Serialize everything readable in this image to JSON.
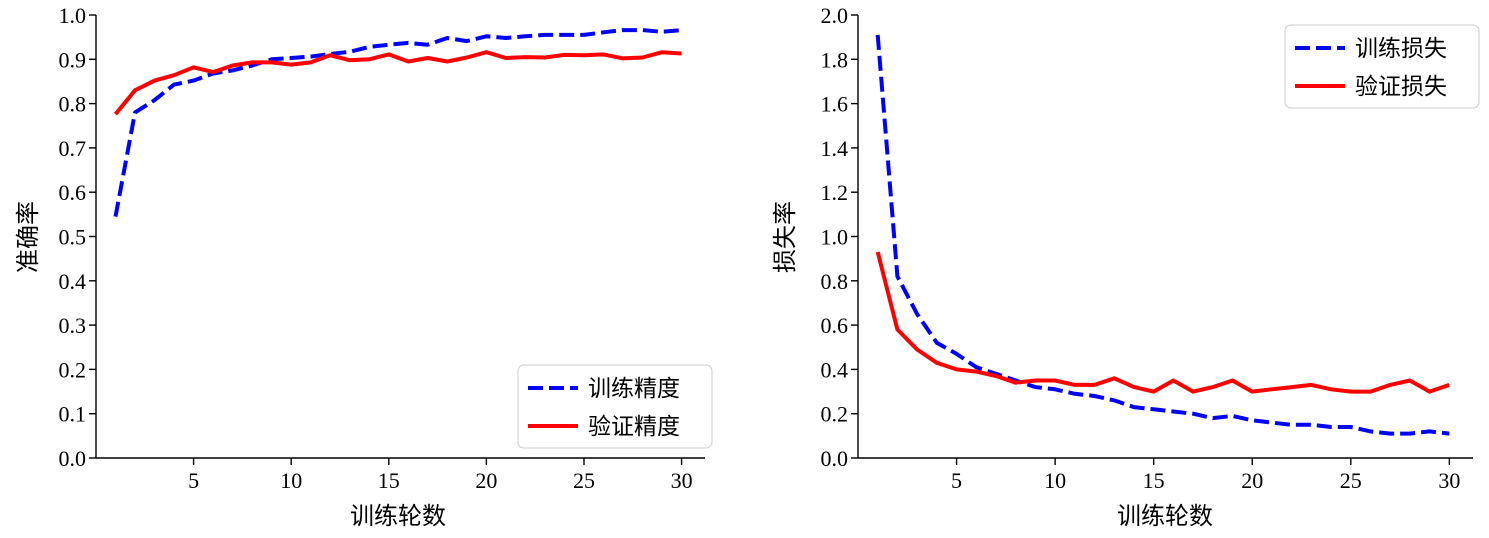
{
  "chart_data": [
    {
      "type": "line",
      "xlabel": "训练轮数",
      "ylabel": "准确率",
      "xlim": [
        0,
        31.2
      ],
      "ylim": [
        0,
        1.0
      ],
      "xticks": [
        5,
        10,
        15,
        20,
        25,
        30
      ],
      "yticks": [
        0.0,
        0.1,
        0.2,
        0.3,
        0.4,
        0.5,
        0.6,
        0.7,
        0.8,
        0.9,
        1.0
      ],
      "ytick_labels": [
        "0.0",
        "0.1",
        "0.2",
        "0.3",
        "0.4",
        "0.5",
        "0.6",
        "0.7",
        "0.8",
        "0.9",
        "1.0"
      ],
      "legend_position": "lower-right",
      "grid": false,
      "x": [
        1,
        2,
        3,
        4,
        5,
        6,
        7,
        8,
        9,
        10,
        11,
        12,
        13,
        14,
        15,
        16,
        17,
        18,
        19,
        20,
        21,
        22,
        23,
        24,
        25,
        26,
        27,
        28,
        29,
        30
      ],
      "series": [
        {
          "name": "训练精度",
          "color": "#0000ff",
          "style": "dashed",
          "values": [
            0.545,
            0.78,
            0.808,
            0.843,
            0.852,
            0.868,
            0.875,
            0.886,
            0.9,
            0.903,
            0.906,
            0.912,
            0.917,
            0.928,
            0.933,
            0.937,
            0.933,
            0.948,
            0.941,
            0.952,
            0.948,
            0.952,
            0.955,
            0.955,
            0.955,
            0.961,
            0.966,
            0.966,
            0.962,
            0.966
          ]
        },
        {
          "name": "验证精度",
          "color": "#ff0000",
          "style": "solid",
          "values": [
            0.776,
            0.83,
            0.852,
            0.864,
            0.882,
            0.871,
            0.886,
            0.893,
            0.893,
            0.888,
            0.893,
            0.909,
            0.898,
            0.9,
            0.911,
            0.895,
            0.903,
            0.895,
            0.904,
            0.916,
            0.903,
            0.905,
            0.904,
            0.91,
            0.909,
            0.911,
            0.902,
            0.904,
            0.916,
            0.913
          ]
        }
      ]
    },
    {
      "type": "line",
      "xlabel": "训练轮数",
      "ylabel": "损失率",
      "xlim": [
        0,
        31.2
      ],
      "ylim": [
        0,
        2.0
      ],
      "xticks": [
        5,
        10,
        15,
        20,
        25,
        30
      ],
      "yticks": [
        0.0,
        0.2,
        0.4,
        0.6,
        0.8,
        1.0,
        1.2,
        1.4,
        1.6,
        1.8,
        2.0
      ],
      "ytick_labels": [
        "0.0",
        "0.2",
        "0.4",
        "0.6",
        "0.8",
        "1.0",
        "1.2",
        "1.4",
        "1.6",
        "1.8",
        "2.0"
      ],
      "legend_position": "upper-right",
      "grid": false,
      "x": [
        1,
        2,
        3,
        4,
        5,
        6,
        7,
        8,
        9,
        10,
        11,
        12,
        13,
        14,
        15,
        16,
        17,
        18,
        19,
        20,
        21,
        22,
        23,
        24,
        25,
        26,
        27,
        28,
        29,
        30
      ],
      "series": [
        {
          "name": "训练损失",
          "color": "#0000ff",
          "style": "dashed",
          "values": [
            1.91,
            0.82,
            0.65,
            0.52,
            0.47,
            0.41,
            0.38,
            0.35,
            0.32,
            0.31,
            0.29,
            0.28,
            0.26,
            0.23,
            0.22,
            0.21,
            0.2,
            0.18,
            0.19,
            0.17,
            0.16,
            0.15,
            0.15,
            0.14,
            0.14,
            0.12,
            0.11,
            0.11,
            0.12,
            0.11
          ]
        },
        {
          "name": "验证损失",
          "color": "#ff0000",
          "style": "solid",
          "values": [
            0.93,
            0.58,
            0.49,
            0.43,
            0.4,
            0.39,
            0.37,
            0.34,
            0.35,
            0.35,
            0.33,
            0.33,
            0.36,
            0.32,
            0.3,
            0.35,
            0.3,
            0.32,
            0.35,
            0.3,
            0.31,
            0.32,
            0.33,
            0.31,
            0.3,
            0.3,
            0.33,
            0.35,
            0.3,
            0.33
          ]
        }
      ]
    }
  ]
}
